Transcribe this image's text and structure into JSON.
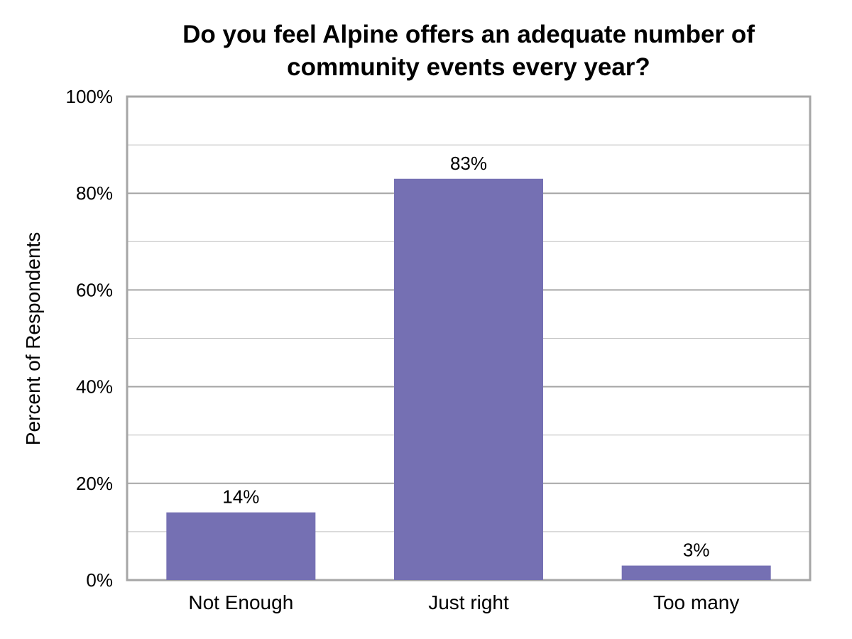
{
  "chart_data": {
    "type": "bar",
    "title_lines": [
      "Do you feel Alpine offers an adequate number of",
      "community events every year?"
    ],
    "xlabel": "",
    "ylabel": "Percent of Respondents",
    "categories": [
      "Not Enough",
      "Just right",
      "Too many"
    ],
    "values": [
      14,
      83,
      3
    ],
    "data_labels": [
      "14%",
      "83%",
      "3%"
    ],
    "ylim": [
      0,
      100
    ],
    "yticks": [
      0,
      20,
      40,
      60,
      80,
      100
    ],
    "ytick_labels": [
      "0%",
      "20%",
      "40%",
      "60%",
      "80%",
      "100%"
    ],
    "minor_gridlines": [
      10,
      30,
      50,
      70,
      90
    ],
    "grid": true,
    "legend": "none",
    "colors": {
      "bar": "#7570b3",
      "gridline": "#c0c0c0",
      "frame": "#a6a6a6"
    }
  }
}
